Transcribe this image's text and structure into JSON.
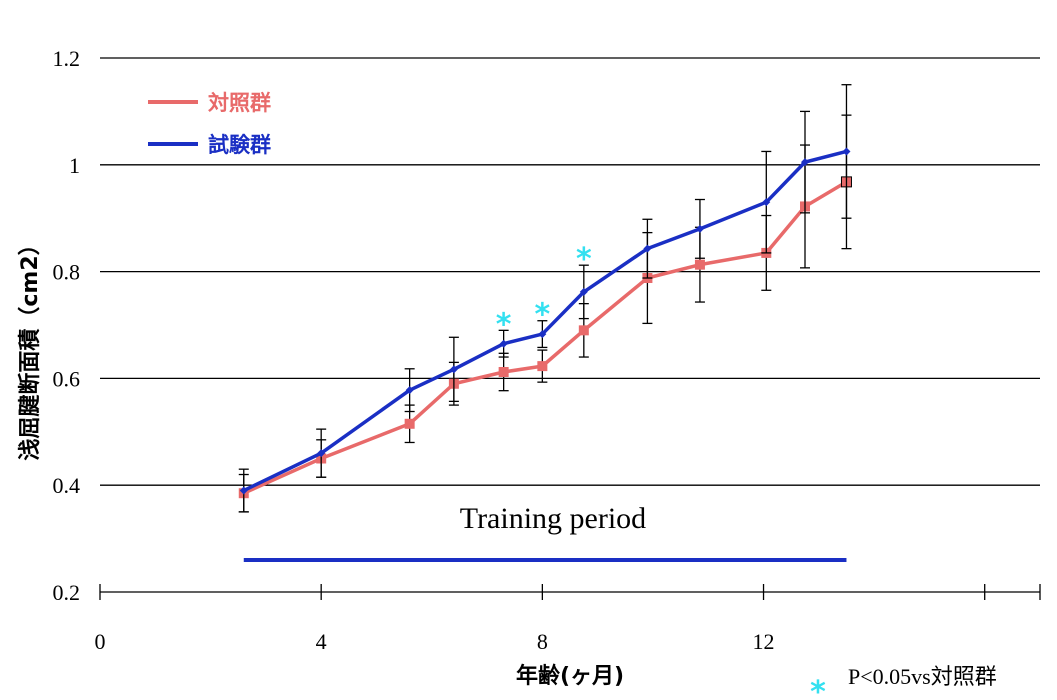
{
  "chart_data": {
    "type": "line",
    "xlabel": "年齢(ヶ月)",
    "ylabel": "浅屈腱断面積（cm2）",
    "xlim": [
      0,
      17
    ],
    "ylim": [
      0.2,
      1.2
    ],
    "x_ticks": [
      "0",
      "4",
      "8",
      "12"
    ],
    "y_ticks": [
      "0.2",
      "0.4",
      "0.6",
      "0.8",
      "1",
      "1.2"
    ],
    "grid": "horizontal",
    "legend_position": "top-left",
    "series": [
      {
        "name": "対照群",
        "color": "#e86a6a",
        "marker": "square",
        "x": [
          2.6,
          4.0,
          5.6,
          6.4,
          7.3,
          8.0,
          8.75,
          9.9,
          10.85,
          12.05,
          12.75,
          13.5
        ],
        "y": [
          0.385,
          0.45,
          0.515,
          0.59,
          0.612,
          0.623,
          0.69,
          0.788,
          0.813,
          0.835,
          0.922,
          0.968
        ],
        "err": [
          0.035,
          0.035,
          0.035,
          0.04,
          0.035,
          0.03,
          0.05,
          0.085,
          0.07,
          0.07,
          0.115,
          0.125
        ]
      },
      {
        "name": "試験群",
        "color": "#1a2fc4",
        "marker": "diamond",
        "x": [
          2.6,
          4.0,
          5.6,
          6.4,
          7.3,
          8.0,
          8.75,
          9.9,
          10.85,
          12.05,
          12.75,
          13.5
        ],
        "y": [
          0.39,
          0.46,
          0.578,
          0.617,
          0.665,
          0.683,
          0.762,
          0.843,
          0.88,
          0.93,
          1.005,
          1.025
        ],
        "err": [
          0.04,
          0.045,
          0.04,
          0.06,
          0.025,
          0.025,
          0.05,
          0.055,
          0.055,
          0.095,
          0.095,
          0.125
        ]
      }
    ],
    "significance_x": [
      7.3,
      8.0,
      8.75
    ],
    "significance_color": "#33e0f0",
    "training_bar": {
      "x": [
        2.6,
        13.5
      ],
      "y": 0.26,
      "color": "#1a2fc4"
    },
    "annotations": {
      "training": "Training period",
      "significance_note": "P<0.05vs対照群",
      "star": "*"
    }
  }
}
